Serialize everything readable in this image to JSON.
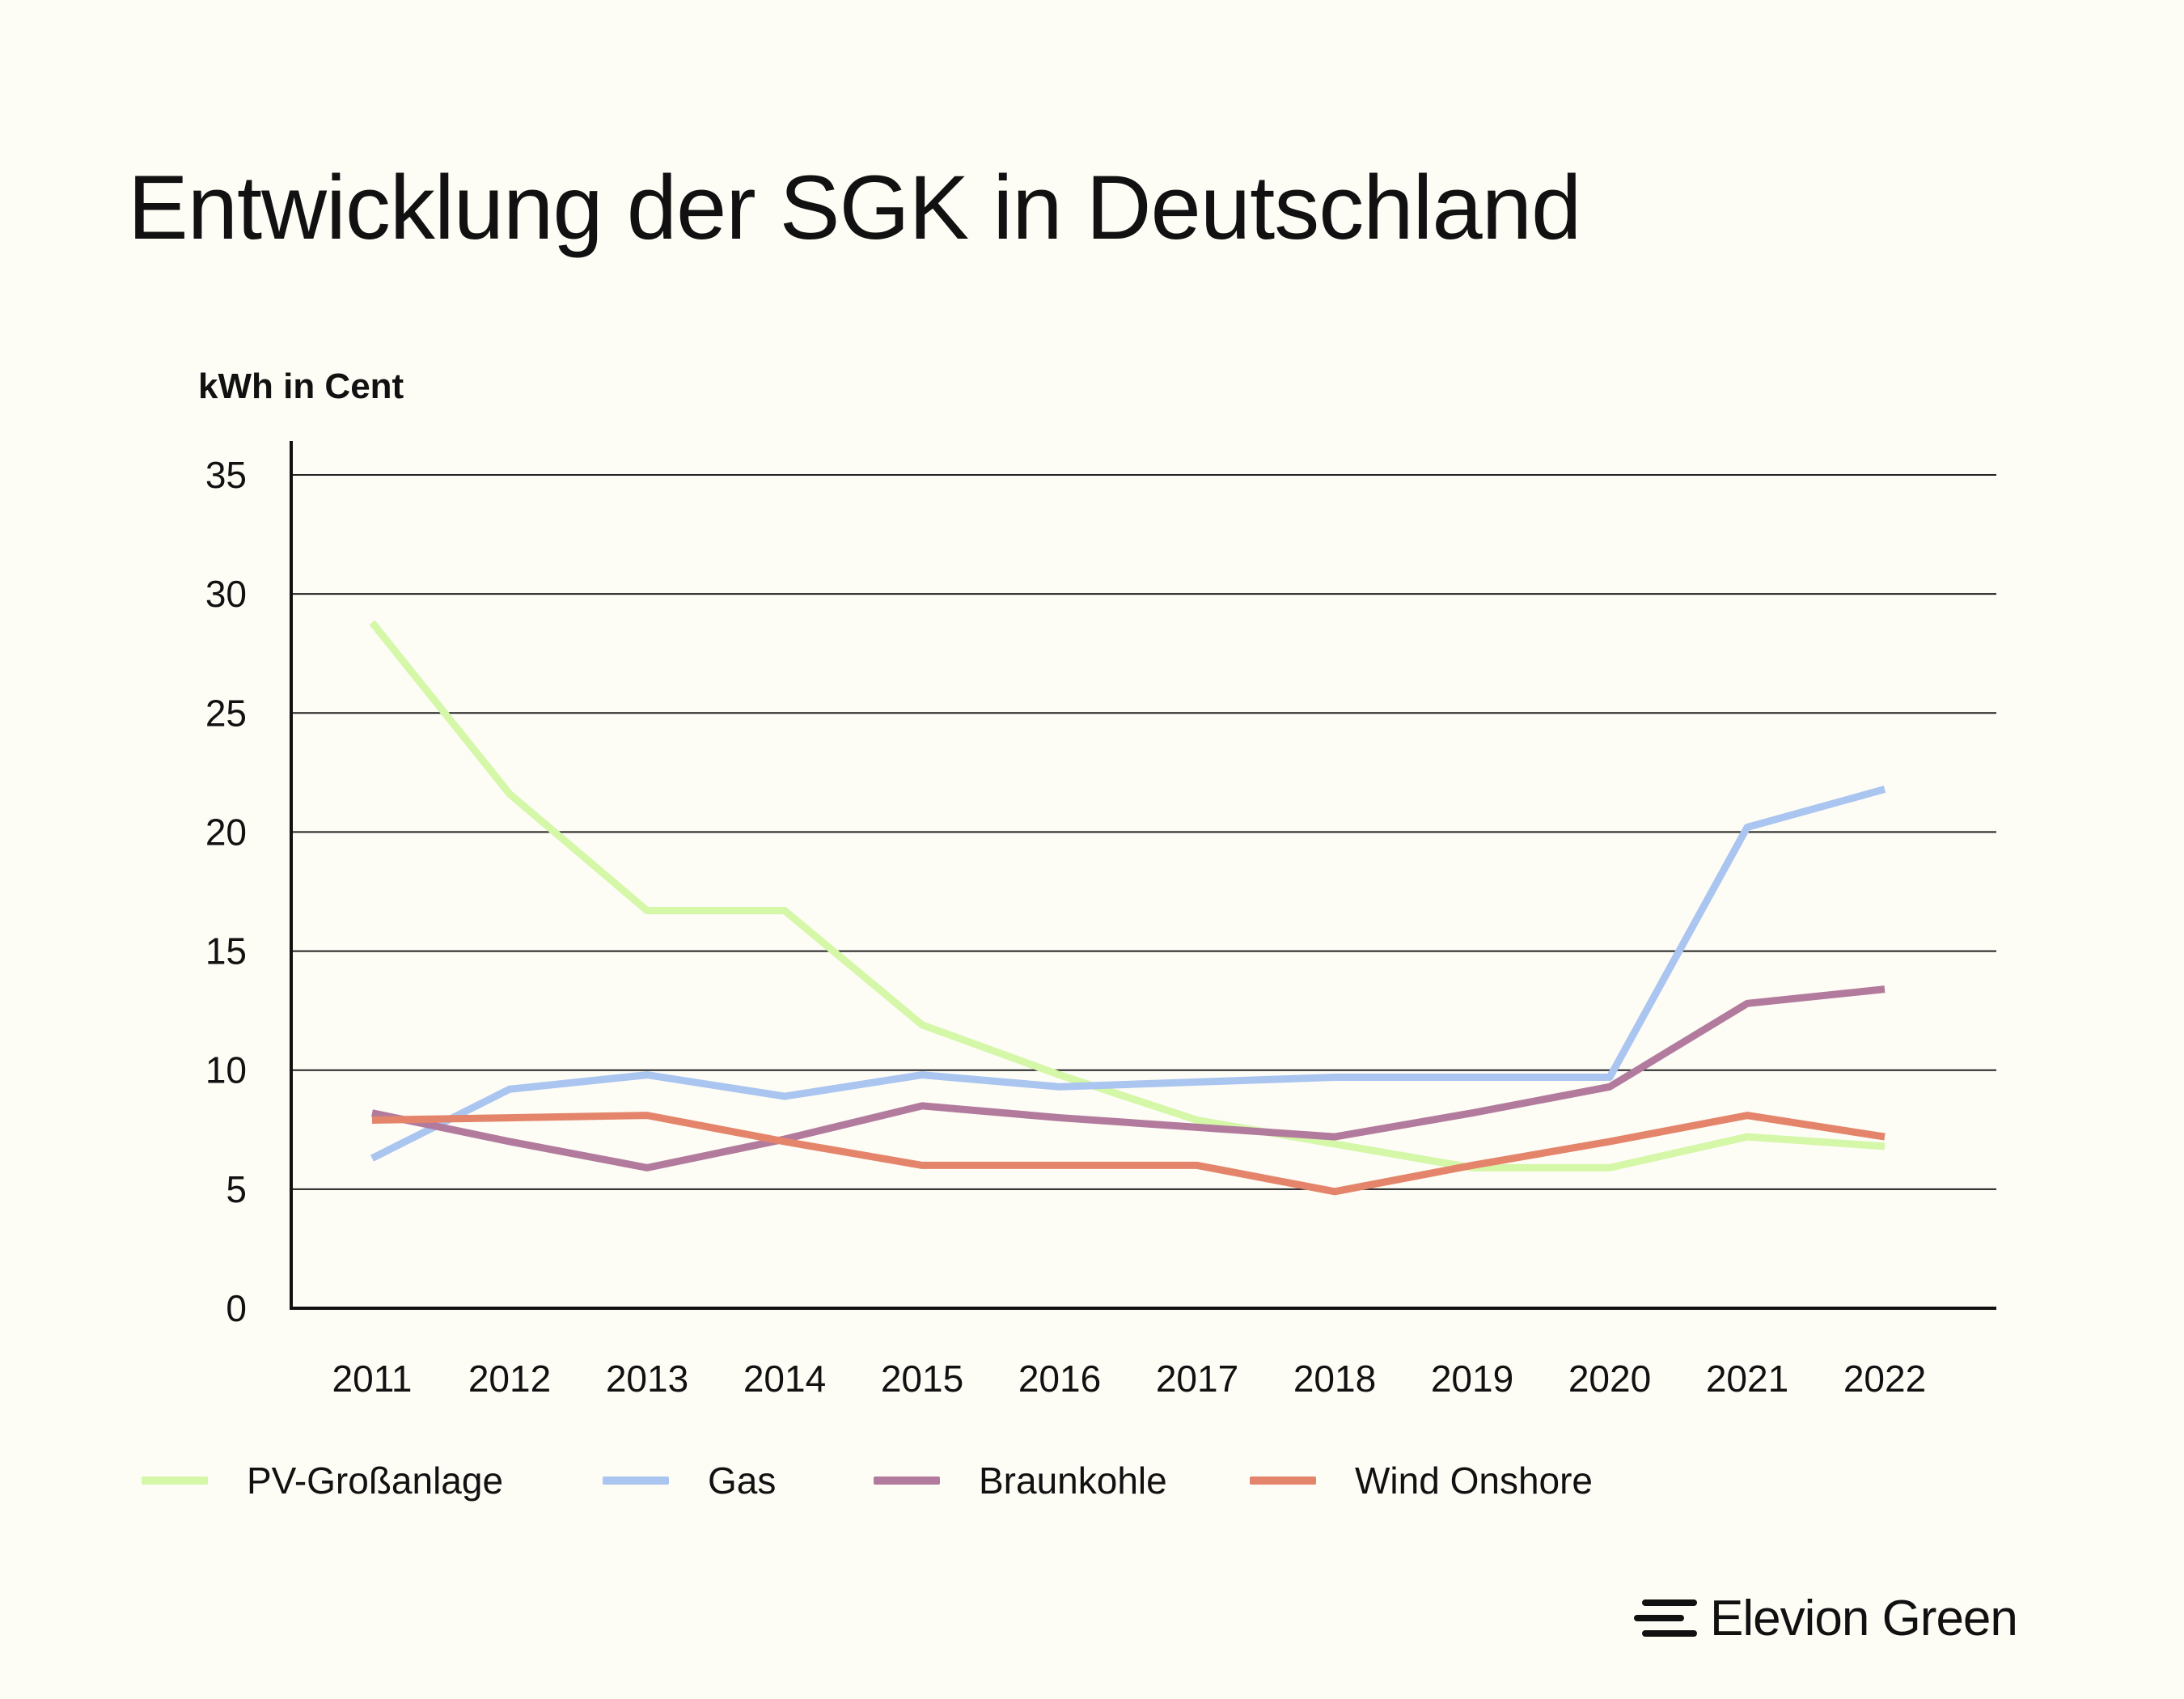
{
  "title": "Entwicklung der SGK in Deutschland",
  "chart_data": {
    "type": "line",
    "title": "Entwicklung der SGK in Deutschland",
    "ylabel": "kWh in Cent",
    "xlabel": "",
    "ylim": [
      0,
      35
    ],
    "yticks": [
      0,
      5,
      10,
      15,
      20,
      25,
      30,
      35
    ],
    "categories": [
      "2011",
      "2012",
      "2013",
      "2014",
      "2015",
      "2016",
      "2017",
      "2018",
      "2019",
      "2020",
      "2021",
      "2022"
    ],
    "grid": true,
    "legend_position": "bottom",
    "series": [
      {
        "name": "PV-Großanlage",
        "color": "#d4f7a8",
        "values": [
          28.8,
          21.6,
          16.7,
          16.7,
          11.9,
          9.8,
          7.9,
          6.9,
          5.9,
          5.9,
          7.2,
          6.8
        ]
      },
      {
        "name": "Gas",
        "color": "#a9c5f0",
        "values": [
          6.3,
          9.2,
          9.8,
          8.9,
          9.8,
          9.3,
          9.5,
          9.7,
          9.7,
          9.7,
          20.2,
          21.8
        ]
      },
      {
        "name": "Braunkohle",
        "color": "#b27b9d",
        "values": [
          8.2,
          7.0,
          5.9,
          7.1,
          8.5,
          8.0,
          7.6,
          7.2,
          8.2,
          9.3,
          12.8,
          13.4
        ]
      },
      {
        "name": "Wind Onshore",
        "color": "#e4856b",
        "values": [
          7.9,
          8.0,
          8.1,
          7.0,
          6.0,
          6.0,
          6.0,
          4.9,
          6.0,
          7.0,
          8.1,
          7.2
        ]
      }
    ]
  },
  "logo": {
    "text": "Elevion Green",
    "icon": "elevion-logo-icon"
  }
}
